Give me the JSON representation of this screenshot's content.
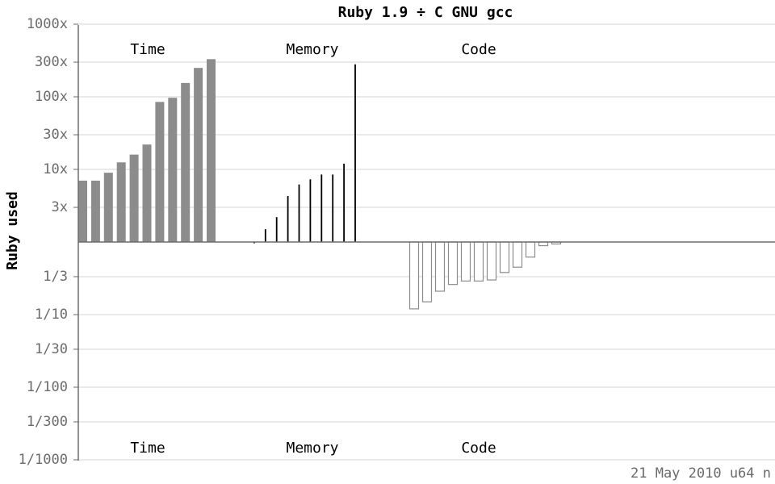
{
  "chart_data": {
    "type": "bar",
    "title": "Ruby 1.9 ÷ C GNU gcc",
    "ylabel": "Ruby used",
    "y_scale": "log",
    "ylim": [
      0.001,
      1000
    ],
    "yticks": [
      {
        "value": 1000,
        "label": "1000x"
      },
      {
        "value": 300,
        "label": "300x"
      },
      {
        "value": 100,
        "label": "100x"
      },
      {
        "value": 30,
        "label": "30x"
      },
      {
        "value": 10,
        "label": "10x"
      },
      {
        "value": 3,
        "label": "3x"
      },
      {
        "value": 0.3333,
        "label": "1/3"
      },
      {
        "value": 0.1,
        "label": "1/10"
      },
      {
        "value": 0.03333,
        "label": "1/30"
      },
      {
        "value": 0.01,
        "label": "1/100"
      },
      {
        "value": 0.003333,
        "label": "1/300"
      },
      {
        "value": 0.001,
        "label": "1/1000"
      }
    ],
    "grid": true,
    "group_labels": [
      "Time",
      "Memory",
      "Code"
    ],
    "series": [
      {
        "name": "Time",
        "color": "#8c8c8c",
        "values": [
          7,
          7,
          9,
          12.5,
          16,
          22,
          85,
          97,
          155,
          250,
          330
        ]
      },
      {
        "name": "Memory",
        "color": "#000000",
        "values": [
          0.96,
          1.5,
          2.2,
          4.3,
          6.2,
          7.3,
          8.5,
          8.5,
          12,
          280
        ]
      },
      {
        "name": "Code",
        "color": "#8c8c8c",
        "values": [
          0.12,
          0.15,
          0.21,
          0.26,
          0.29,
          0.29,
          0.3,
          0.38,
          0.45,
          0.62,
          0.89,
          0.94
        ]
      }
    ]
  },
  "footer": "21 May 2010 u64 n"
}
